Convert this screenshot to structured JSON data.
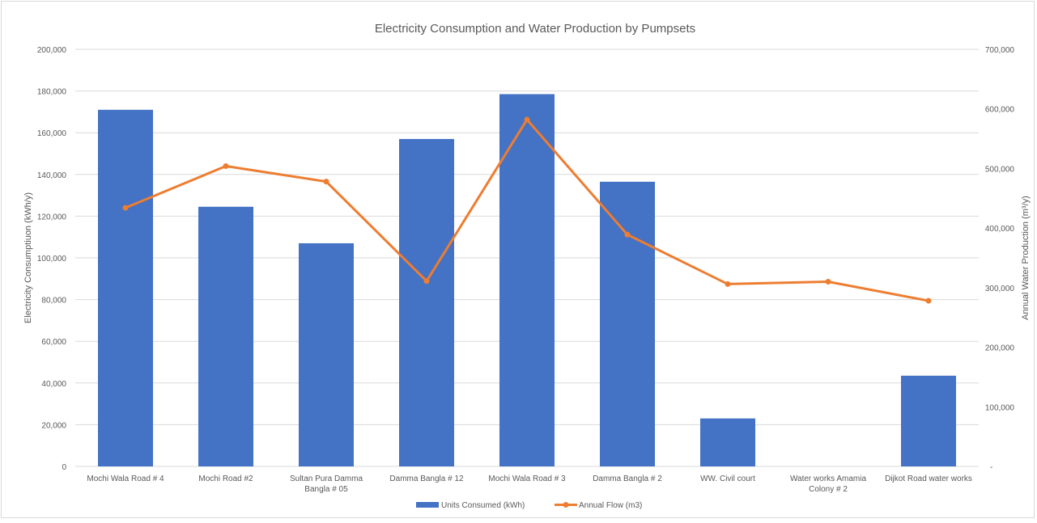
{
  "chart_data": {
    "type": "bar+line",
    "title": "Electricity Consumption and Water Production by Pumpsets",
    "categories": [
      [
        "Mochi Wala Road # 4"
      ],
      [
        "Mochi Road #2"
      ],
      [
        "Sultan Pura Damma",
        "Bangla # 05"
      ],
      [
        "Damma Bangla # 12"
      ],
      [
        "Mochi Wala Road # 3"
      ],
      [
        "Damma Bangla # 2"
      ],
      [
        "WW. Civil court"
      ],
      [
        "Water works Amamia",
        "Colony # 2"
      ],
      [
        "Dijkot Road water works"
      ]
    ],
    "series": [
      {
        "name": "Units Consumed (kWh)",
        "type": "bar",
        "axis": "left",
        "color": "#4472c4",
        "values": [
          171000,
          124500,
          107000,
          157000,
          178500,
          136500,
          23000,
          0,
          43500
        ]
      },
      {
        "name": "Annual Flow (m3)",
        "type": "line",
        "axis": "right",
        "color": "#ed7d31",
        "values": [
          434000,
          504000,
          478000,
          311000,
          582000,
          389000,
          306000,
          310000,
          278000
        ]
      }
    ],
    "y_left": {
      "label": "Electricity Consumptiuon (kWh/y)",
      "range": [
        0,
        200000
      ],
      "ticks": [
        0,
        20000,
        40000,
        60000,
        80000,
        100000,
        120000,
        140000,
        160000,
        180000,
        200000
      ],
      "tick_labels": [
        "0",
        "20,000",
        "40,000",
        "60,000",
        "80,000",
        "100,000",
        "120,000",
        "140,000",
        "160,000",
        "180,000",
        "200,000"
      ]
    },
    "y_right": {
      "label": "Annual Water Production (m³/y)",
      "range": [
        0,
        700000
      ],
      "ticks": [
        0,
        100000,
        200000,
        300000,
        400000,
        500000,
        600000,
        700000
      ],
      "tick_labels": [
        "-",
        "100,000",
        "200,000",
        "300,000",
        "400,000",
        "500,000",
        "600,000",
        "700,000"
      ]
    },
    "grid": true,
    "legend_position": "bottom"
  }
}
